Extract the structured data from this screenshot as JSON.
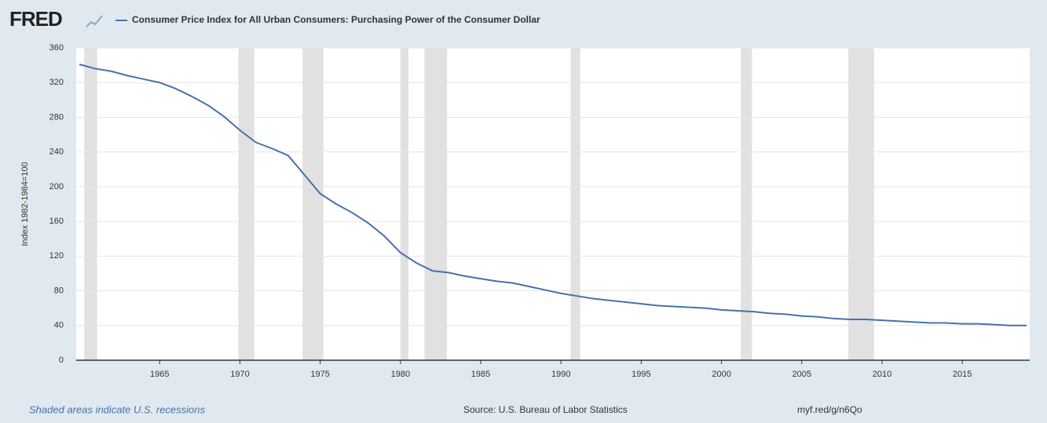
{
  "chart_data": {
    "type": "line",
    "logo": "FRED",
    "title": "Consumer Price Index for All Urban Consumers: Purchasing Power of the Consumer Dollar",
    "ylabel": "Index 1982-1984=100",
    "note": "Shaded areas indicate U.S. recessions",
    "source": "Source: U.S. Bureau of Labor Statistics",
    "link": "myf.red/g/n6Qo",
    "color": "#4572a7",
    "recession_color": "#e1e1e1",
    "grid": true,
    "xlim": [
      1959.8,
      2019.2
    ],
    "xticks": [
      1965,
      1970,
      1975,
      1980,
      1985,
      1990,
      1995,
      2000,
      2005,
      2010,
      2015
    ],
    "ylim": [
      0,
      360
    ],
    "yticks": [
      0,
      40,
      80,
      120,
      160,
      200,
      240,
      280,
      320,
      360
    ],
    "recessions": [
      [
        1960.3,
        1961.1
      ],
      [
        1969.9,
        1970.9
      ],
      [
        1973.9,
        1975.2
      ],
      [
        1980.0,
        1980.5
      ],
      [
        1981.5,
        1982.9
      ],
      [
        1990.6,
        1991.2
      ],
      [
        2001.2,
        2001.9
      ],
      [
        2007.9,
        2009.5
      ]
    ],
    "x": [
      1960,
      1961,
      1962,
      1963,
      1964,
      1965,
      1966,
      1967,
      1968,
      1969,
      1970,
      1971,
      1972,
      1973,
      1974,
      1975,
      1976,
      1977,
      1978,
      1979,
      1980,
      1981,
      1982,
      1983,
      1984,
      1985,
      1986,
      1987,
      1988,
      1989,
      1990,
      1991,
      1992,
      1993,
      1994,
      1995,
      1996,
      1997,
      1998,
      1999,
      2000,
      2001,
      2002,
      2003,
      2004,
      2005,
      2006,
      2007,
      2008,
      2009,
      2010,
      2011,
      2012,
      2013,
      2014,
      2015,
      2016,
      2017,
      2018,
      2019
    ],
    "values": [
      341,
      336,
      333,
      328,
      324,
      320,
      313,
      304,
      294,
      281,
      265,
      251,
      244,
      236,
      214,
      192,
      180,
      170,
      158,
      143,
      124,
      112,
      103,
      101,
      97,
      94,
      91,
      89,
      85,
      81,
      77,
      74,
      71,
      69,
      67,
      65,
      63,
      62,
      61,
      60,
      58,
      57,
      56,
      54,
      53,
      51,
      50,
      48,
      47,
      47,
      46,
      45,
      44,
      43,
      43,
      42,
      42,
      41,
      40,
      40
    ]
  }
}
